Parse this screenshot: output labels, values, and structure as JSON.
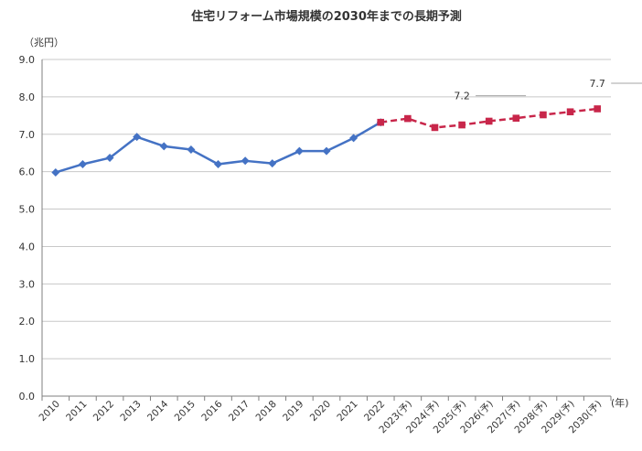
{
  "chart_data": {
    "type": "line",
    "title": "住宅リフォーム市場規模の2030年までの長期予測",
    "y_unit_label": "（兆円）",
    "x_unit_label": "(年)",
    "ylim": [
      0,
      9
    ],
    "y_ticks": [
      "0.0",
      "1.0",
      "2.0",
      "3.0",
      "4.0",
      "5.0",
      "6.0",
      "7.0",
      "8.0",
      "9.0"
    ],
    "grid": true,
    "categories": [
      "2010",
      "2011",
      "2012",
      "2013",
      "2014",
      "2015",
      "2016",
      "2017",
      "2018",
      "2019",
      "2020",
      "2021",
      "2022",
      "2023(予)",
      "2024(予)",
      "2025(予)",
      "2026(予)",
      "2027(予)",
      "2028(予)",
      "2029(予)",
      "2030(予)"
    ],
    "series": [
      {
        "style": "solid",
        "marker": "diamond",
        "color": "#4472c4",
        "values": [
          5.98,
          6.2,
          6.37,
          6.93,
          6.68,
          6.59,
          6.2,
          6.29,
          6.22,
          6.55,
          6.55,
          6.9,
          7.32,
          null,
          null,
          null,
          null,
          null,
          null,
          null,
          null
        ]
      },
      {
        "style": "dashed",
        "marker": "square",
        "color": "#c8264a",
        "values": [
          null,
          null,
          null,
          null,
          null,
          null,
          null,
          null,
          null,
          null,
          null,
          null,
          7.32,
          7.42,
          7.18,
          7.25,
          7.35,
          7.43,
          7.52,
          7.6,
          7.68
        ]
      }
    ],
    "annotations": [
      {
        "text": "7.2",
        "category": "2025(予)"
      },
      {
        "text": "7.7",
        "category": "2030(予)"
      }
    ]
  }
}
